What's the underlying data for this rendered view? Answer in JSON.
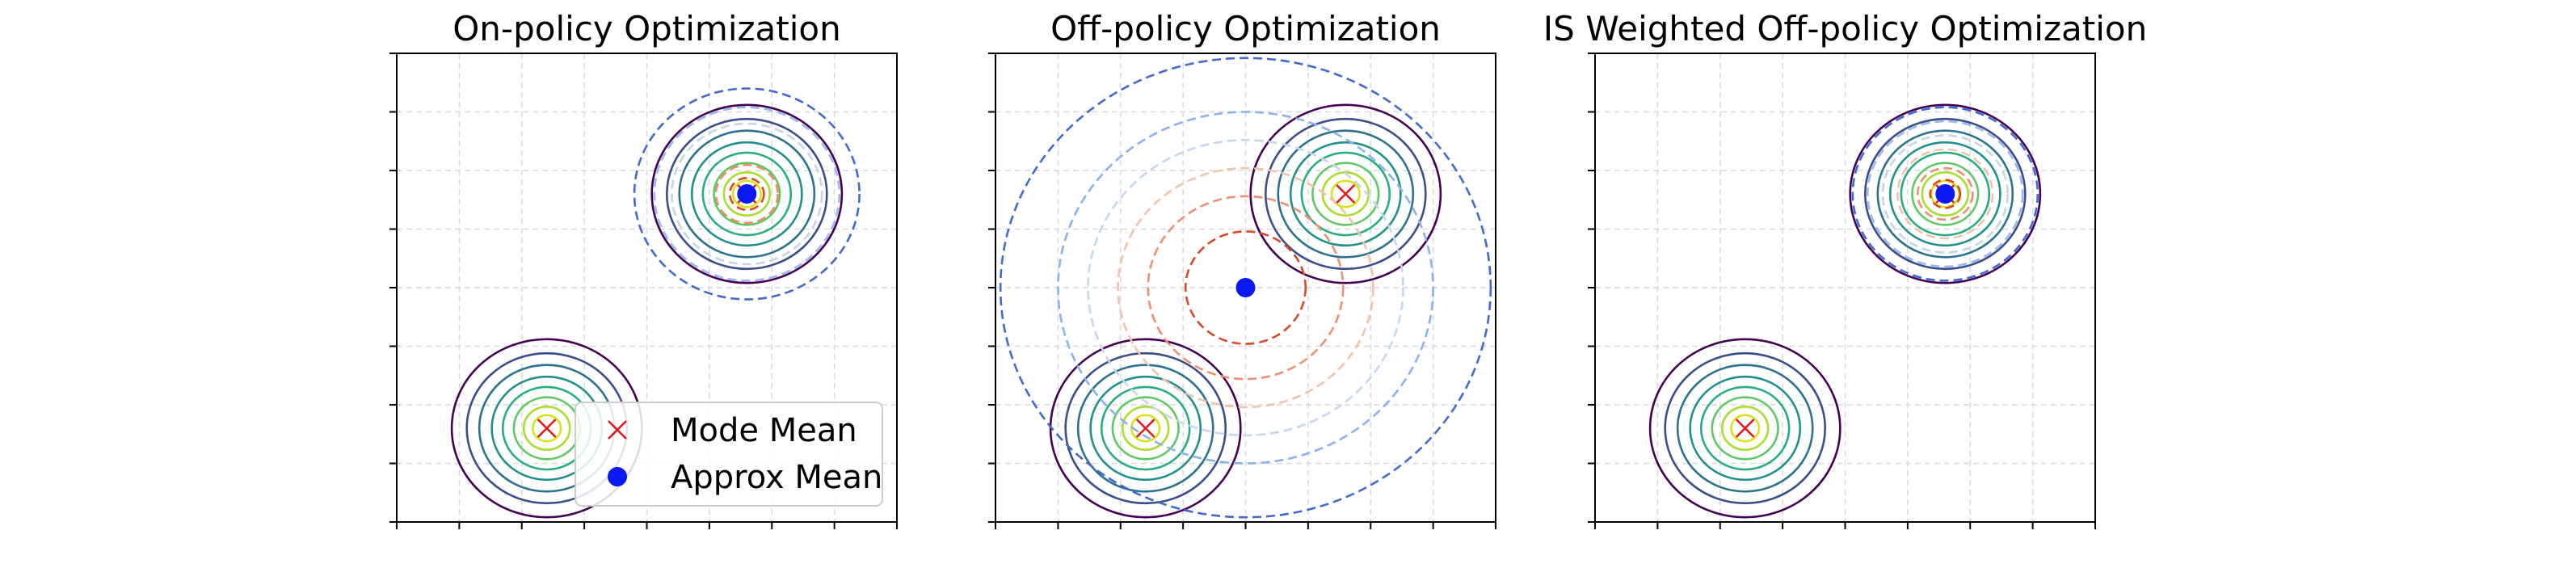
{
  "chart_data": [
    {
      "type": "contour",
      "title": "On-policy Optimization",
      "xlim": [
        -5,
        5
      ],
      "ylim": [
        -5,
        5
      ],
      "grid": true,
      "x_tick_count": 9,
      "y_tick_count": 9,
      "tick_labels_visible": false,
      "modes": [
        {
          "x": -2.0,
          "y": -3.0
        },
        {
          "x": 2.0,
          "y": 2.0
        }
      ],
      "mode_contour_radii": [
        1.9,
        1.6,
        1.35,
        1.1,
        0.88,
        0.66,
        0.46,
        0.28
      ],
      "approx_mean": {
        "x": 2.0,
        "y": 2.0
      },
      "approx_contour_radii": [
        2.25,
        1.85,
        1.5,
        0.62,
        0.34
      ],
      "approx_colors": [
        "#4169cf",
        "#9cb9ee",
        "#c9d3e6",
        "#f08a6a",
        "#d64a2a"
      ],
      "legend": {
        "position": "lower right",
        "entries": [
          {
            "label": "Mode Mean",
            "marker": "x",
            "color": "#e31a1c"
          },
          {
            "label": "Approx Mean",
            "marker": "o",
            "color": "#0a1af0"
          }
        ]
      }
    },
    {
      "type": "contour",
      "title": "Off-policy Optimization",
      "xlim": [
        -5,
        5
      ],
      "ylim": [
        -5,
        5
      ],
      "grid": true,
      "x_tick_count": 9,
      "y_tick_count": 9,
      "tick_labels_visible": false,
      "modes": [
        {
          "x": -2.0,
          "y": -3.0
        },
        {
          "x": 2.0,
          "y": 2.0
        }
      ],
      "mode_contour_radii": [
        1.9,
        1.6,
        1.35,
        1.1,
        0.88,
        0.66,
        0.46,
        0.28
      ],
      "approx_mean": {
        "x": 0.0,
        "y": 0.0
      },
      "approx_contour_radii": [
        4.9,
        3.75,
        3.15,
        2.55,
        1.95,
        1.2
      ],
      "approx_colors": [
        "#4169cf",
        "#8bb0ee",
        "#c6d6ee",
        "#f2c2ab",
        "#ec9072",
        "#d64a2a"
      ],
      "legend": null
    },
    {
      "type": "contour",
      "title": "IS Weighted Off-policy Optimization",
      "xlim": [
        -5,
        5
      ],
      "ylim": [
        -5,
        5
      ],
      "grid": true,
      "x_tick_count": 9,
      "y_tick_count": 9,
      "tick_labels_visible": false,
      "modes": [
        {
          "x": -2.0,
          "y": -3.0
        },
        {
          "x": 2.0,
          "y": 2.0
        }
      ],
      "mode_contour_radii": [
        1.9,
        1.6,
        1.35,
        1.1,
        0.88,
        0.66,
        0.46,
        0.28
      ],
      "approx_mean": {
        "x": 2.0,
        "y": 2.0
      },
      "approx_contour_radii": [
        1.85,
        1.55,
        1.25,
        0.95,
        0.55,
        0.3
      ],
      "approx_colors": [
        "#4169cf",
        "#9cb9ee",
        "#c9d3e6",
        "#f2c2ab",
        "#ec9072",
        "#d64a2a"
      ],
      "legend": null
    }
  ],
  "mode_contour_colors": [
    "#440154",
    "#3b4e8c",
    "#2c728e",
    "#21908d",
    "#27ad81",
    "#5ec962",
    "#aadc32",
    "#d8e219"
  ]
}
